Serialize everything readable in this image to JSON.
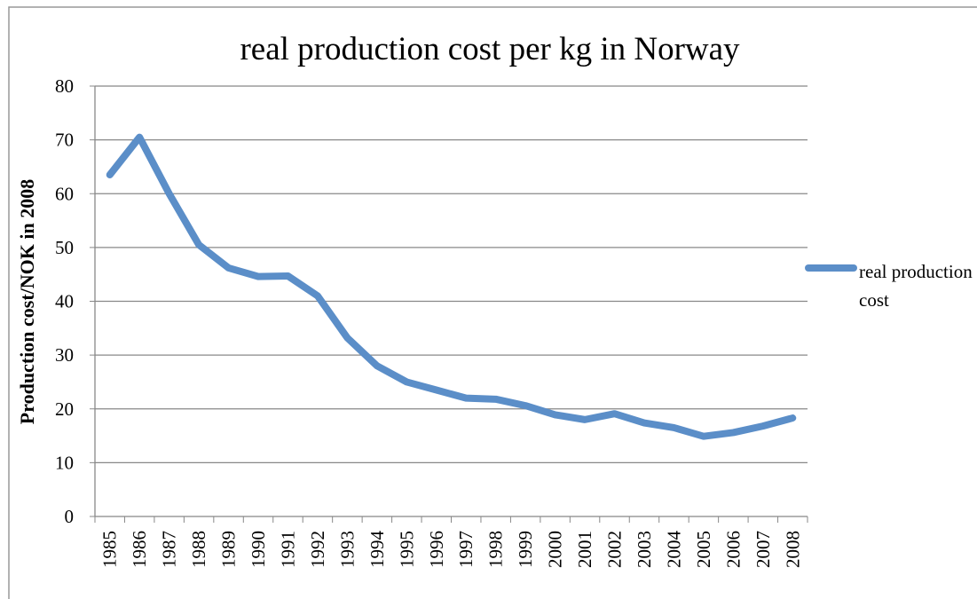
{
  "chart_data": {
    "type": "line",
    "title": "real production cost per kg in Norway",
    "y_label": "Production cost/NOK in 2008",
    "categories": [
      "1985",
      "1986",
      "1987",
      "1988",
      "1989",
      "1990",
      "1991",
      "1992",
      "1993",
      "1994",
      "1995",
      "1996",
      "1997",
      "1998",
      "1999",
      "2000",
      "2001",
      "2002",
      "2003",
      "2004",
      "2005",
      "2006",
      "2007",
      "2008"
    ],
    "series": [
      {
        "name": "real production cost",
        "color": "#5b8ec8",
        "values": [
          63.5,
          70.5,
          60,
          50.5,
          46.2,
          44.6,
          44.7,
          41,
          33.2,
          28,
          25,
          23.5,
          22,
          21.8,
          20.6,
          18.9,
          18,
          19.1,
          17.4,
          16.5,
          14.9,
          15.6,
          16.8,
          18.3
        ]
      }
    ],
    "ylim": [
      0,
      80
    ],
    "yticks": [
      0,
      10,
      20,
      30,
      40,
      50,
      60,
      70,
      80
    ],
    "grid": true,
    "legend": "right"
  }
}
